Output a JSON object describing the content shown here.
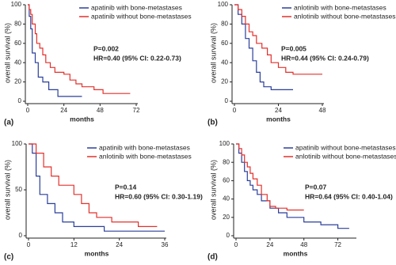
{
  "chart_data": [
    {
      "type": "line",
      "panel_label": "(a)",
      "xlabel": "months",
      "ylabel": "overall survival (%)",
      "xlim": [
        0,
        72
      ],
      "xticks": [
        0,
        24,
        48,
        72
      ],
      "ylim": [
        0,
        100
      ],
      "yticks": [
        0,
        20,
        40,
        60,
        80,
        100
      ],
      "annotations": [
        "P=0.002",
        "HR=0.40 (95% CI: 0.22-0.73)"
      ],
      "series": [
        {
          "name": "apatinib with bone-metastases",
          "color": "#2a3f9a",
          "x": [
            0,
            1,
            1,
            2,
            2,
            3,
            3,
            5,
            5,
            7,
            7,
            10,
            10,
            14,
            14,
            20,
            20,
            36
          ],
          "values": [
            100,
            100,
            88,
            88,
            75,
            75,
            50,
            50,
            40,
            40,
            25,
            25,
            20,
            20,
            12,
            12,
            5,
            5
          ]
        },
        {
          "name": "apatinib without bone-metastases",
          "color": "#e3302b",
          "x": [
            0,
            1,
            1,
            2,
            2,
            3,
            3,
            5,
            5,
            6,
            6,
            8,
            8,
            10,
            10,
            12,
            12,
            15,
            15,
            18,
            18,
            24,
            24,
            28,
            28,
            32,
            32,
            36,
            36,
            44,
            44,
            50,
            50,
            68
          ],
          "values": [
            100,
            100,
            95,
            95,
            90,
            90,
            80,
            80,
            70,
            70,
            60,
            60,
            55,
            55,
            48,
            48,
            40,
            40,
            35,
            35,
            30,
            30,
            28,
            28,
            22,
            22,
            18,
            18,
            15,
            15,
            12,
            12,
            8,
            8
          ]
        }
      ]
    },
    {
      "type": "line",
      "panel_label": "(b)",
      "xlabel": "months",
      "ylabel": "overall survival (%)",
      "xlim": [
        0,
        48
      ],
      "xticks": [
        0,
        24,
        48
      ],
      "ylim": [
        0,
        100
      ],
      "yticks": [
        0,
        20,
        40,
        60,
        80,
        100
      ],
      "annotations": [
        "P=0.005",
        "HR=0.44 (95% CI: 0.24-0.79)"
      ],
      "series": [
        {
          "name": "anlotinib with bone-metastases",
          "color": "#2a3f9a",
          "x": [
            0,
            2,
            2,
            4,
            4,
            6,
            6,
            8,
            8,
            10,
            10,
            12,
            12,
            14,
            14,
            16,
            16,
            20,
            20,
            32
          ],
          "values": [
            100,
            100,
            90,
            90,
            80,
            80,
            65,
            65,
            55,
            55,
            42,
            42,
            30,
            30,
            20,
            20,
            15,
            15,
            12,
            12
          ]
        },
        {
          "name": "anlotinib without bone-metastases",
          "color": "#e3302b",
          "x": [
            0,
            2,
            2,
            4,
            4,
            6,
            6,
            8,
            8,
            10,
            10,
            12,
            12,
            15,
            15,
            18,
            18,
            20,
            20,
            24,
            24,
            28,
            28,
            32,
            32,
            48
          ],
          "values": [
            100,
            100,
            95,
            95,
            88,
            88,
            80,
            80,
            72,
            72,
            68,
            68,
            60,
            60,
            55,
            55,
            48,
            48,
            40,
            40,
            35,
            35,
            30,
            30,
            28,
            28
          ]
        }
      ]
    },
    {
      "type": "line",
      "panel_label": "(c)",
      "xlabel": "months",
      "ylabel": "overall survival (%)",
      "xlim": [
        0,
        36
      ],
      "xticks": [
        0,
        12,
        24,
        36
      ],
      "ylim": [
        0,
        100
      ],
      "yticks": [
        0,
        50,
        100
      ],
      "annotations": [
        "P=0.14",
        "HR=0.60 (95% CI: 0.30-1.19)"
      ],
      "series": [
        {
          "name": "apatinib with bone-metastases",
          "color": "#2a3f9a",
          "x": [
            0,
            1,
            1,
            2,
            2,
            3,
            3,
            5,
            5,
            7,
            7,
            9,
            9,
            12,
            12,
            20,
            20,
            36
          ],
          "values": [
            100,
            100,
            90,
            90,
            65,
            65,
            45,
            45,
            35,
            35,
            25,
            25,
            15,
            15,
            10,
            10,
            5,
            5
          ]
        },
        {
          "name": "anlotinib with bone-metastases",
          "color": "#e3302b",
          "x": [
            0,
            2,
            2,
            4,
            4,
            6,
            6,
            8,
            8,
            12,
            12,
            14,
            14,
            16,
            16,
            18,
            18,
            22,
            22,
            29,
            29,
            34
          ],
          "values": [
            100,
            100,
            90,
            90,
            75,
            75,
            65,
            65,
            55,
            55,
            45,
            45,
            35,
            35,
            25,
            25,
            20,
            20,
            15,
            15,
            10,
            10
          ]
        }
      ]
    },
    {
      "type": "line",
      "panel_label": "(d)",
      "xlabel": "months",
      "ylabel": "overall survival (%)",
      "xlim": [
        0,
        84
      ],
      "xticks": [
        0,
        24,
        48,
        72
      ],
      "ylim": [
        0,
        100
      ],
      "yticks": [
        0,
        20,
        40,
        60,
        80,
        100
      ],
      "annotations": [
        "P=0.07",
        "HR=0.64 (95% CI: 0.40-1.04)"
      ],
      "series": [
        {
          "name": "apatinib without bone-metastases",
          "color": "#2a3f9a",
          "x": [
            0,
            2,
            2,
            4,
            4,
            6,
            6,
            8,
            8,
            10,
            10,
            12,
            12,
            15,
            15,
            18,
            18,
            24,
            24,
            30,
            30,
            36,
            36,
            48,
            48,
            60,
            60,
            72,
            72,
            80
          ],
          "values": [
            100,
            100,
            90,
            90,
            80,
            80,
            70,
            70,
            60,
            60,
            55,
            55,
            50,
            50,
            45,
            45,
            38,
            38,
            30,
            30,
            25,
            25,
            20,
            20,
            15,
            15,
            12,
            12,
            8,
            8
          ]
        },
        {
          "name": "anlotinib without bone-metastases",
          "color": "#e3302b",
          "x": [
            0,
            2,
            2,
            4,
            4,
            6,
            6,
            8,
            8,
            10,
            10,
            12,
            12,
            15,
            15,
            18,
            18,
            22,
            22,
            24,
            24,
            28,
            28,
            36,
            36,
            48
          ],
          "values": [
            100,
            100,
            95,
            95,
            88,
            88,
            80,
            80,
            75,
            75,
            68,
            68,
            62,
            62,
            55,
            55,
            45,
            45,
            38,
            38,
            32,
            32,
            30,
            30,
            28,
            28
          ]
        }
      ]
    }
  ]
}
